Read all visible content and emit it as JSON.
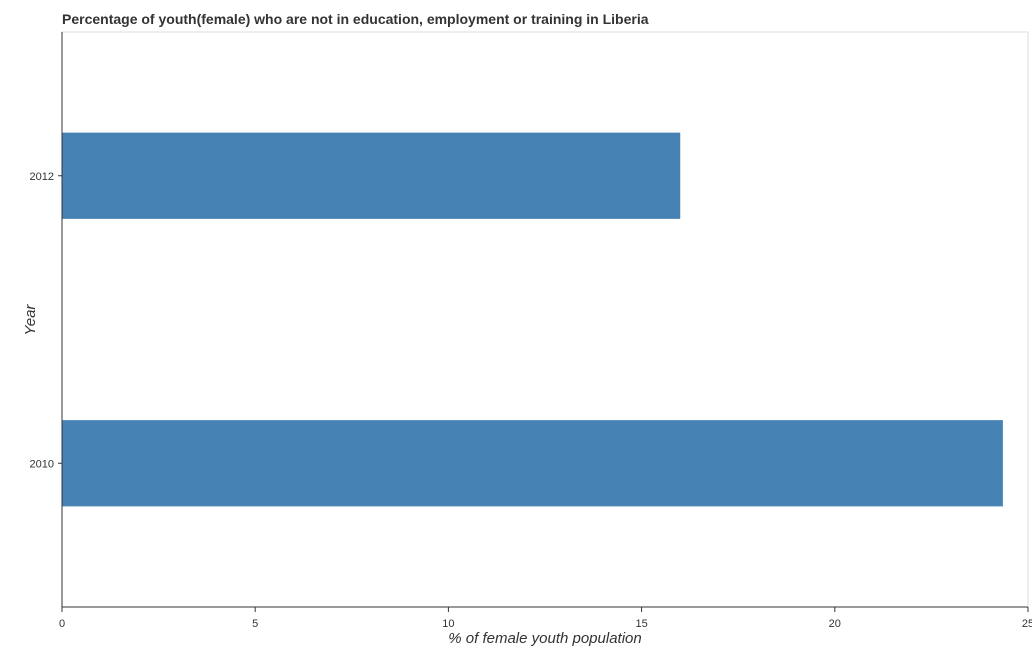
{
  "chart_data": {
    "type": "bar",
    "orientation": "horizontal",
    "title": "Percentage of youth(female) who are not in education, employment or training in Liberia",
    "xlabel": "% of female youth population",
    "ylabel": "Year",
    "categories": [
      "2010",
      "2012"
    ],
    "values": [
      24.35,
      16.0
    ],
    "xlim": [
      0,
      25
    ],
    "xticks": [
      0,
      5,
      10,
      15,
      20,
      25
    ],
    "grid": false,
    "legend": "none",
    "bar_color": "#4682b4"
  }
}
